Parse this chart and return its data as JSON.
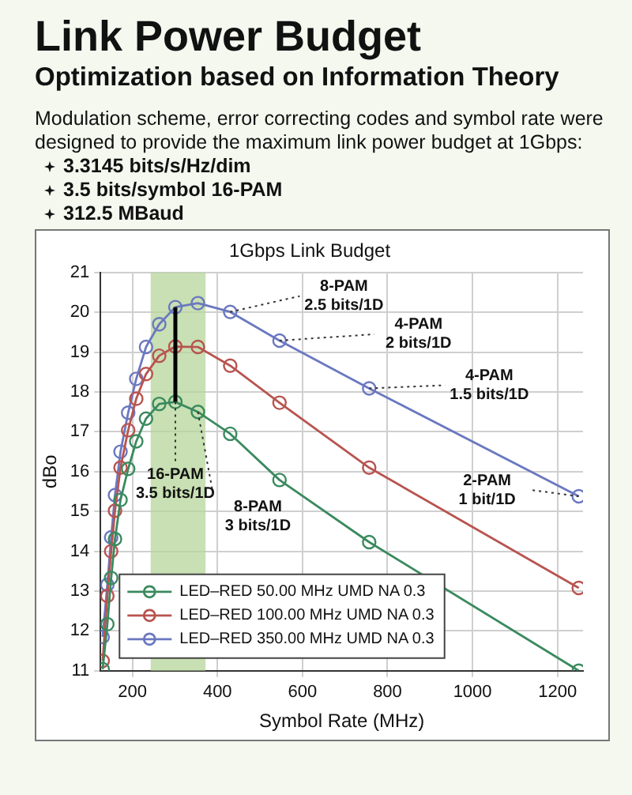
{
  "chart_data": {
    "type": "line",
    "title": "Link Power Budget",
    "subtitle": "Optimization based on Information Theory",
    "xlabel": "Symbol Rate (MHz)",
    "ylabel": "dBo",
    "x": [
      130,
      141,
      150,
      159,
      172,
      190,
      209,
      232,
      263,
      301,
      354,
      430,
      546,
      757,
      1250
    ],
    "series": [
      {
        "name": "LED–RED 50.00 MHz UMD NA 0.3",
        "color": "#3a8a5e",
        "values": [
          11.04,
          12.17,
          13.33,
          14.31,
          15.29,
          16.07,
          16.76,
          17.33,
          17.7,
          17.75,
          17.5,
          16.95,
          15.79,
          14.23,
          11.0
        ]
      },
      {
        "name": "LED–RED 100.00 MHz UMD NA 0.3",
        "color": "#b85450",
        "values": [
          11.25,
          12.88,
          14.0,
          15.02,
          16.1,
          17.04,
          17.83,
          18.45,
          18.91,
          19.14,
          19.13,
          18.66,
          17.73,
          16.1,
          13.08
        ]
      },
      {
        "name": "LED–RED 350.00 MHz UMD NA 0.3",
        "color": "#6b78c0",
        "values": [
          11.85,
          13.16,
          14.35,
          15.41,
          16.5,
          17.48,
          18.33,
          19.13,
          19.7,
          20.13,
          20.23,
          20.01,
          19.29,
          18.09,
          15.38
        ]
      },
      {
        "type": "line",
        "marker": "none",
        "color": "#000000",
        "x": [
          301,
          301
        ],
        "values": [
          17.75,
          20.13
        ]
      }
    ],
    "bands": [
      {
        "axis": "x",
        "from": 243,
        "to": 372,
        "color": "#b5d69a"
      }
    ],
    "xlim": [
      125,
      1260
    ],
    "xticks": [
      200,
      400,
      600,
      800,
      1000,
      1200
    ],
    "ylim": [
      11,
      21
    ],
    "yticks": [
      11,
      12,
      13,
      14,
      15,
      16,
      17,
      18,
      19,
      20,
      21
    ],
    "grid": true,
    "legend": "bottom left",
    "marker": "circle",
    "line_style": "solid",
    "annotations": [
      "Modulation scheme, error correcting codes and symbol rate were designed to provide the maximum link power budget at 1Gbps:",
      "3.3145 bits/s/Hz/dim",
      "3.5 bits/symbol 16-PAM",
      "312.5 MBaud",
      "1Gbps Link Budget",
      {
        "text": "8-PAM\n2.5 bits/1D",
        "x": 430,
        "y": 20.01
      },
      {
        "text": "4-PAM\n2 bits/1D",
        "x": 546,
        "y": 19.29
      },
      {
        "text": "4-PAM\n1.5 bits/1D",
        "x": 757,
        "y": 18.09
      },
      {
        "text": "2-PAM\n1 bit/1D",
        "x": 1250,
        "y": 15.38
      },
      {
        "text": "16-PAM\n3.5 bits/1D",
        "x": 301,
        "y": 17.75
      },
      {
        "text": "8-PAM\n3 bits/1D",
        "x": 354,
        "y": 17.5
      }
    ]
  }
}
